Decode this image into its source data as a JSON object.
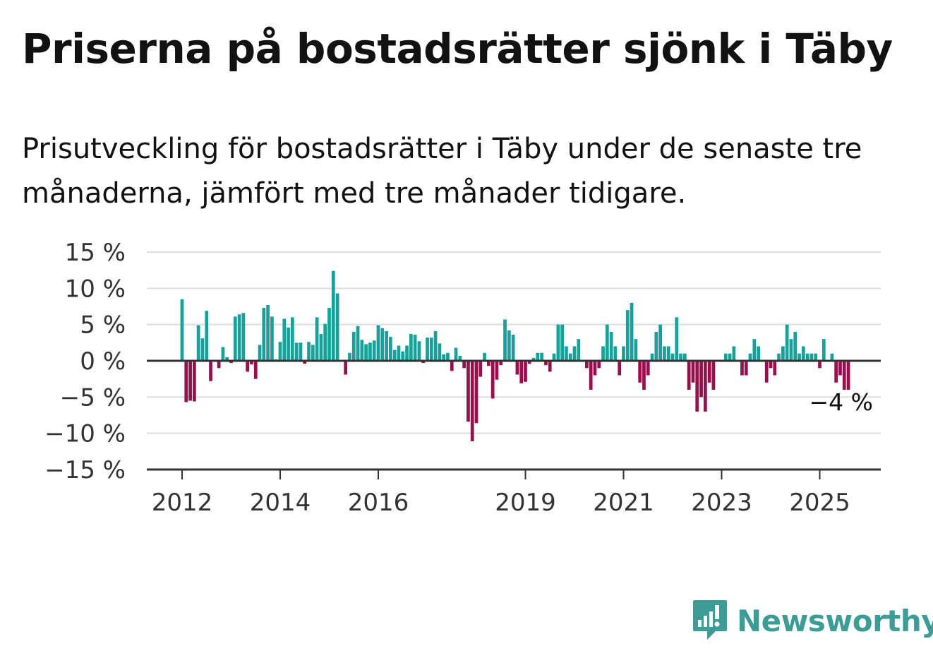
{
  "header": {
    "title": "Priserna på bostadsrätter sjönk i Täby",
    "subtitle": "Prisutveckling för bostadsrätter i Täby under de senaste tre månaderna, jämfört med tre månader tidigare."
  },
  "brand": {
    "name": "Newsworthy",
    "color": "#3e9c96"
  },
  "colors": {
    "positive": "#18a19b",
    "negative": "#9a0f4b",
    "grid": "#dddddd",
    "axis": "#333333"
  },
  "chart_data": {
    "type": "bar",
    "title": "",
    "xlabel": "",
    "ylabel": "",
    "ylim": [
      -15,
      15
    ],
    "y_ticks": [
      15,
      10,
      5,
      0,
      -5,
      -10,
      -15
    ],
    "y_tick_labels": [
      "15 %",
      "10 %",
      "5 %",
      "0 %",
      "−5 %",
      "−10 %",
      "−15 %"
    ],
    "x_ticks": [
      2012,
      2014,
      2016,
      2019,
      2021,
      2023,
      2025
    ],
    "x_tick_labels": [
      "2012",
      "2014",
      "2016",
      "2019",
      "2021",
      "2023",
      "2025"
    ],
    "x_start": "2012-01",
    "x_end": "2025-08",
    "grid": true,
    "annotation": "−4 %",
    "series": [
      {
        "values": [
          8.5,
          -5.7,
          -5.5,
          -5.6,
          4.9,
          3.1,
          6.9,
          -2.8,
          0,
          -1.0,
          1.9,
          0.5,
          -0.3,
          6.1,
          6.4,
          6.6,
          -1.5,
          -0.5,
          -2.5,
          2.2,
          7.3,
          7.7,
          6.1,
          0.2,
          2.6,
          5.8,
          4.6,
          6.0,
          2.5,
          2.5,
          -0.4,
          2.6,
          2.2,
          6.0,
          3.7,
          5.1,
          7.3,
          12.4,
          9.3,
          0,
          -1.9,
          1.1,
          4.0,
          4.8,
          2.9,
          2.3,
          2.5,
          2.8,
          4.9,
          4.5,
          4.1,
          3.3,
          1.5,
          2.1,
          1.3,
          2.1,
          3.7,
          3.6,
          2.7,
          -0.3,
          3.2,
          3.2,
          4.1,
          2.4,
          0.9,
          1.1,
          -1.4,
          1.8,
          0.7,
          -1.0,
          -8.4,
          -11.1,
          -8.6,
          -2.2,
          1.1,
          -0.7,
          -5.2,
          -2.6,
          -0.6,
          5.7,
          4.2,
          3.6,
          -1.9,
          -3.1,
          -2.9,
          -0.4,
          0.4,
          1.1,
          1.1,
          -0.6,
          -1.5,
          1.0,
          5.0,
          5.0,
          2.0,
          1.0,
          2.0,
          3.0,
          0,
          -1.0,
          -4.0,
          -2.0,
          -1.0,
          2.0,
          5.0,
          4.0,
          2.0,
          -2.0,
          2.0,
          7.0,
          8.0,
          3.0,
          -3.0,
          -4.0,
          -2.0,
          1.0,
          4.0,
          5.0,
          2.0,
          2.0,
          1.0,
          6.0,
          1.0,
          1.0,
          -4.0,
          -3.0,
          -7.0,
          -5.0,
          -7.0,
          -3.0,
          -4.0,
          0,
          0,
          1.0,
          1.0,
          2.0,
          0,
          -2.0,
          -2.0,
          1.0,
          3.0,
          2.0,
          0,
          -3.0,
          -1.0,
          -2.0,
          1.0,
          2.0,
          5.0,
          3.0,
          4.0,
          1.0,
          2.0,
          1.0,
          1.0,
          1.0,
          -1.0,
          3.0,
          0,
          1.0,
          -3.0,
          -2.0,
          -4.0,
          -4.0
        ]
      }
    ]
  }
}
